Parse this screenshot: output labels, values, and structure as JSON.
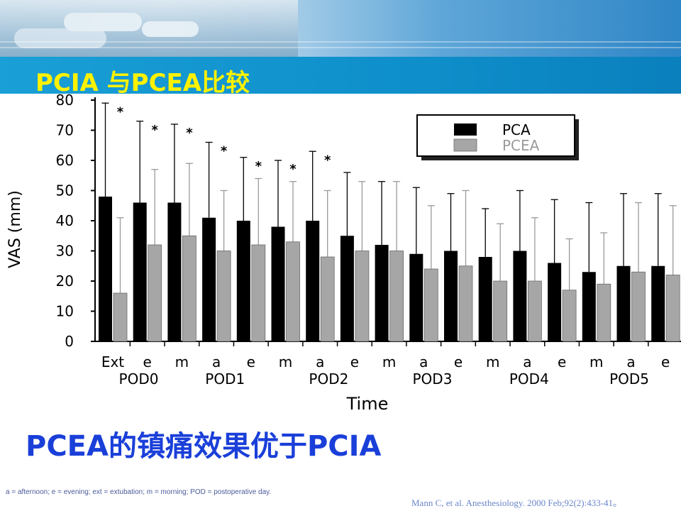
{
  "slide": {
    "title": "PCIA 与PCEA比较",
    "conclusion": "PCEA的镇痛效果优于PCIA",
    "footnote": "a = afternoon; e = evening; ext = extubation; m = morning; POD = postoperative day.",
    "citation": "Mann C, et al. Anesthesiology.  2000 Feb;92(2):433-41。",
    "title_color": "#fff200",
    "conclusion_color": "#1a3fd9"
  },
  "chart_data": {
    "type": "bar",
    "title": "",
    "xlabel": "Time",
    "ylabel": "VAS (mm)",
    "ylim": [
      0,
      80
    ],
    "yticks": [
      0,
      10,
      20,
      30,
      40,
      50,
      60,
      70,
      80
    ],
    "categories": [
      "Ext",
      "e",
      "m",
      "a",
      "e",
      "m",
      "a",
      "e",
      "m",
      "a",
      "e",
      "m",
      "a",
      "e",
      "m",
      "a",
      "e"
    ],
    "groups": [
      "POD0",
      "POD1",
      "POD2",
      "POD3",
      "POD4",
      "POD5"
    ],
    "legend_position": "top-right",
    "grid": false,
    "significance_marker": "*",
    "significant": [
      true,
      true,
      true,
      true,
      true,
      true,
      true,
      false,
      false,
      false,
      false,
      false,
      false,
      false,
      false,
      false,
      false
    ],
    "series": [
      {
        "name": "PCA",
        "color": "#000000",
        "values": [
          48,
          46,
          46,
          41,
          40,
          38,
          40,
          35,
          32,
          29,
          30,
          28,
          30,
          26,
          23,
          25,
          25
        ],
        "upper": [
          79,
          73,
          72,
          66,
          61,
          60,
          63,
          56,
          53,
          51,
          49,
          44,
          50,
          47,
          46,
          49,
          49
        ]
      },
      {
        "name": "PCEA",
        "color": "#a6a6a6",
        "values": [
          16,
          32,
          35,
          30,
          32,
          33,
          28,
          30,
          30,
          24,
          25,
          20,
          20,
          17,
          19,
          23,
          22
        ],
        "upper": [
          41,
          57,
          59,
          50,
          54,
          53,
          50,
          53,
          53,
          45,
          50,
          39,
          41,
          34,
          36,
          46,
          45
        ]
      }
    ]
  }
}
